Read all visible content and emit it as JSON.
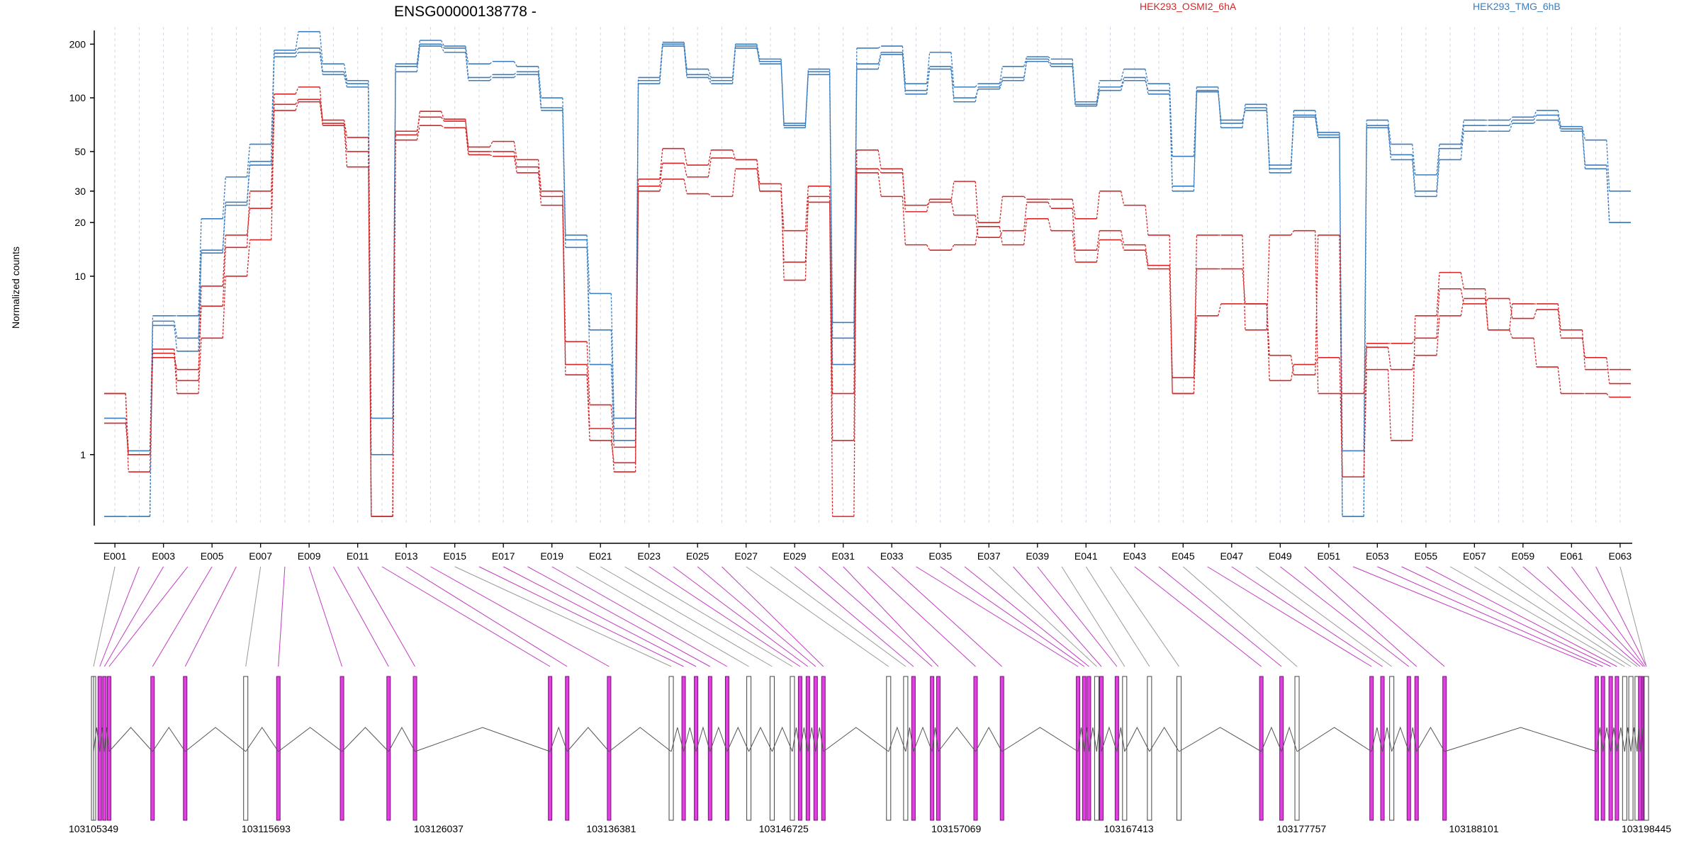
{
  "chart_data": {
    "type": "line",
    "title": "ENSG00000138778 -",
    "ylabel": "Normalized counts",
    "y_scale": "log",
    "ylim": [
      0.4,
      300
    ],
    "yticks": [
      1,
      10,
      20,
      30,
      50,
      100,
      200
    ],
    "grid": "vertical dashed",
    "legend": [
      {
        "label": "HEK293_OSMI2_6hA",
        "color": "#d62728"
      },
      {
        "label": "HEK293_TMG_6hB",
        "color": "#3b7dbf"
      }
    ],
    "x_tick_labels": [
      "E001",
      "E003",
      "E005",
      "E007",
      "E009",
      "E011",
      "E013",
      "E015",
      "E017",
      "E019",
      "E021",
      "E023",
      "E025",
      "E027",
      "E029",
      "E031",
      "E033",
      "E035",
      "E037",
      "E039",
      "E041",
      "E043",
      "E045",
      "E047",
      "E049",
      "E051",
      "E053",
      "E055",
      "E057",
      "E059",
      "E061",
      "E063"
    ],
    "categories": [
      "E001",
      "E002",
      "E003",
      "E004",
      "E005",
      "E006",
      "E007",
      "E008",
      "E009",
      "E010",
      "E011",
      "E012",
      "E013",
      "E014",
      "E015",
      "E016",
      "E017",
      "E018",
      "E019",
      "E020",
      "E021",
      "E022",
      "E023",
      "E024",
      "E025",
      "E026",
      "E027",
      "E028",
      "E029",
      "E030",
      "E031",
      "E032",
      "E033",
      "E034",
      "E035",
      "E036",
      "E037",
      "E038",
      "E039",
      "E040",
      "E041",
      "E042",
      "E043",
      "E044",
      "E045",
      "E046",
      "E047",
      "E048",
      "E049",
      "E050",
      "E051",
      "E052",
      "E053",
      "E054",
      "E055",
      "E056",
      "E057",
      "E058",
      "E059",
      "E060",
      "E061",
      "E062",
      "E063"
    ],
    "series": [
      {
        "group": "HEK293_TMG_6hB",
        "values": [
          0.45,
          0.45,
          5.3,
          3.8,
          13.5,
          25,
          42,
          170,
          180,
          135,
          115,
          1.0,
          140,
          195,
          180,
          125,
          130,
          135,
          85,
          16,
          3.2,
          1.2,
          120,
          195,
          130,
          120,
          195,
          155,
          68,
          135,
          3.2,
          145,
          175,
          105,
          150,
          100,
          112,
          125,
          165,
          155,
          90,
          110,
          125,
          110,
          32,
          110,
          75,
          85,
          40,
          78,
          60,
          0.45,
          68,
          45,
          28,
          45,
          65,
          65,
          72,
          75,
          65,
          40,
          20
        ]
      },
      {
        "group": "HEK293_TMG_6hB",
        "values": [
          0.45,
          0.45,
          5.6,
          4.5,
          14,
          26,
          44,
          178,
          190,
          140,
          120,
          1.6,
          150,
          200,
          190,
          130,
          135,
          140,
          88,
          14.5,
          5,
          1.4,
          125,
          200,
          135,
          125,
          190,
          160,
          72,
          140,
          4.5,
          155,
          180,
          110,
          145,
          95,
          115,
          130,
          160,
          150,
          92,
          115,
          130,
          105,
          30,
          108,
          72,
          88,
          42,
          80,
          62,
          0.45,
          70,
          48,
          30,
          52,
          70,
          70,
          75,
          80,
          67,
          42,
          20
        ]
      },
      {
        "group": "HEK293_TMG_6hB",
        "values": [
          1.6,
          1.05,
          6,
          6,
          21,
          36,
          55,
          185,
          235,
          155,
          125,
          0.45,
          155,
          210,
          195,
          155,
          160,
          150,
          100,
          17,
          8,
          1.6,
          130,
          205,
          145,
          130,
          200,
          165,
          70,
          145,
          5.5,
          190,
          195,
          120,
          180,
          115,
          120,
          150,
          170,
          165,
          95,
          125,
          145,
          120,
          47,
          115,
          68,
          92,
          38,
          85,
          64,
          1.05,
          75,
          55,
          37,
          55,
          75,
          75,
          78,
          85,
          69,
          58,
          30
        ]
      },
      {
        "group": "HEK293_OSMI2_6hA",
        "values": [
          1.5,
          1.0,
          3.5,
          3.0,
          6.8,
          14.5,
          30,
          105,
          115,
          72,
          50,
          0.45,
          62,
          84,
          76,
          50,
          50,
          41,
          28,
          2.8,
          1.2,
          0.9,
          32,
          43,
          36,
          46,
          45,
          33,
          9.5,
          28,
          0.45,
          51,
          40,
          23,
          27,
          22,
          16.5,
          18,
          26,
          24,
          14,
          18,
          15,
          11.5,
          2.7,
          11,
          11,
          7,
          3.6,
          2.8,
          17,
          0.75,
          3.0,
          1.2,
          6,
          10.5,
          8.5,
          5,
          4.5,
          3.1,
          2.2,
          2.2,
          2.1
        ]
      },
      {
        "group": "HEK293_OSMI2_6hA",
        "values": [
          2.2,
          0.8,
          3.7,
          2.2,
          4.5,
          10,
          16,
          85,
          95,
          70,
          41,
          0.45,
          58,
          70,
          68,
          48,
          47,
          38,
          25,
          3.2,
          1.4,
          0.8,
          30,
          35,
          29,
          28,
          40,
          30,
          12,
          26,
          1.2,
          38,
          28,
          15,
          14,
          15,
          19,
          15,
          21,
          18,
          12,
          16,
          14,
          11,
          2.2,
          6,
          7,
          7,
          2.6,
          3.2,
          3.5,
          0.75,
          4.0,
          3.0,
          3.6,
          6,
          7.5,
          5,
          7,
          7,
          5,
          3.0,
          3.0
        ]
      },
      {
        "group": "HEK293_OSMI2_6hA",
        "values": [
          2.2,
          1.0,
          3.9,
          2.6,
          8.8,
          17,
          24,
          92,
          98,
          75,
          60,
          0.45,
          65,
          78,
          74,
          53,
          57,
          45,
          30,
          4.3,
          1.9,
          1.1,
          35,
          52,
          42,
          51,
          45,
          30,
          18,
          32,
          2.2,
          40,
          38,
          25,
          26,
          34,
          20,
          28,
          27,
          27,
          21,
          30,
          25,
          17,
          2.2,
          17,
          17,
          5,
          17,
          18,
          2.2,
          2.2,
          4.2,
          4.2,
          4.5,
          8.5,
          7,
          7.5,
          5.8,
          6.5,
          4.5,
          3.5,
          2.5
        ]
      }
    ],
    "gene_coordinate_ticks": [
      "103105349",
      "103115693",
      "103126037",
      "103136381",
      "103146725",
      "103157069",
      "103167413",
      "103177757",
      "103188101",
      "103198445"
    ]
  }
}
